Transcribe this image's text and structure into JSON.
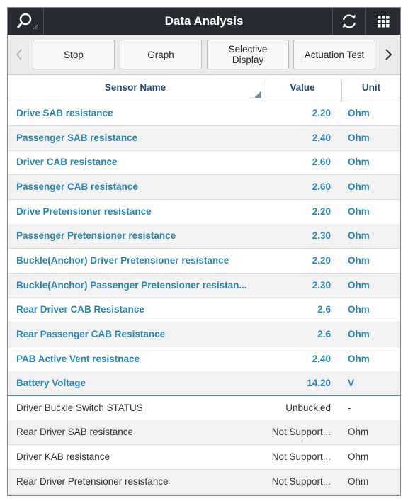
{
  "header": {
    "title": "Data Analysis"
  },
  "toolbar": {
    "buttons": [
      "Stop",
      "Graph",
      "Selective Display",
      "Actuation Test"
    ]
  },
  "table": {
    "columns": [
      "Sensor Name",
      "Value",
      "Unit"
    ],
    "selected_rows": [
      [
        "Drive SAB resistance",
        "2.20",
        "Ohm"
      ],
      [
        "Passenger SAB resistance",
        "2.40",
        "Ohm"
      ],
      [
        "Driver CAB resistance",
        "2.60",
        "Ohm"
      ],
      [
        "Passenger CAB resistance",
        "2.60",
        "Ohm"
      ],
      [
        "Drive Pretensioner resistance",
        "2.20",
        "Ohm"
      ],
      [
        "Passenger Pretensioner resistance",
        "2.30",
        "Ohm"
      ],
      [
        "Buckle(Anchor) Driver Pretensioner resistance",
        "2.20",
        "Ohm"
      ],
      [
        "Buckle(Anchor) Passenger Pretensioner resistan...",
        "2.30",
        "Ohm"
      ],
      [
        "Rear Driver CAB Resistance",
        "2.6",
        "Ohm"
      ],
      [
        "Rear Passenger CAB Resistance",
        "2.6",
        "Ohm"
      ],
      [
        "PAB Active Vent resistnace",
        "2.40",
        "Ohm"
      ],
      [
        "Battery Voltage",
        "14.20",
        "V"
      ]
    ],
    "rows": [
      [
        "Driver Buckle Switch STATUS",
        "Unbuckled",
        "-"
      ],
      [
        "Rear Driver SAB resistance",
        "Not Support...",
        "Ohm"
      ],
      [
        "Driver KAB resistance",
        "Not Support...",
        "Ohm"
      ],
      [
        "Rear Driver Pretensioner resistance",
        "Not Support...",
        "Ohm"
      ]
    ]
  }
}
